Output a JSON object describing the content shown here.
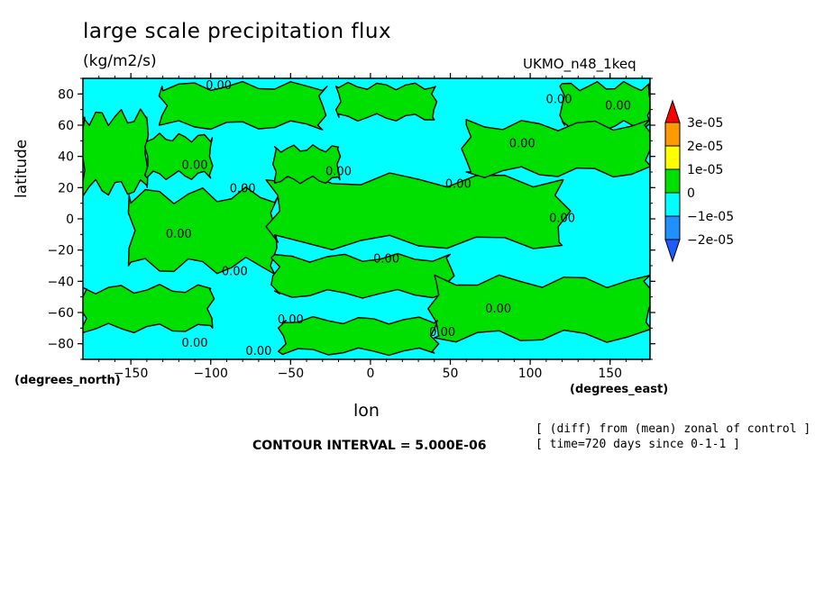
{
  "chart_data": {
    "type": "heatmap",
    "title": "large scale precipitation flux",
    "units": "(kg/m2/s)",
    "model_label": "UKMO_n48_1keq",
    "xlabel": "lon",
    "xunit": "(degrees_east)",
    "ylabel": "latitude",
    "yunit": "(degrees_north)",
    "xlim": [
      -180,
      175
    ],
    "ylim": [
      -90,
      90
    ],
    "x_ticks": [
      -150,
      -100,
      -50,
      0,
      50,
      100,
      150
    ],
    "y_ticks": [
      80,
      60,
      40,
      20,
      0,
      -20,
      -40,
      -60,
      -80
    ],
    "contour_labels": [
      "0.00"
    ],
    "colorbar": {
      "labels": [
        "3e-05",
        "2e-05",
        "1e-05",
        "0",
        "−1e-05",
        "−2e-05"
      ],
      "colors": [
        "#ff0000",
        "#ff9900",
        "#ffff00",
        "#00e000",
        "#00ffff",
        "#1e90ff",
        "#1f5cff"
      ]
    },
    "contour_interval": "CONTOUR INTERVAL = 5.000E-06",
    "notes": [
      "[ (diff) from (mean) zonal of control ]",
      "[ time=720 days since 0-1-1 ]"
    ],
    "regions_positive": [
      {
        "lon": [
          -180,
          -140
        ],
        "lat": [
          20,
          65
        ]
      },
      {
        "lon": [
          -140,
          -100
        ],
        "lat": [
          28,
          52
        ]
      },
      {
        "lon": [
          -150,
          -60
        ],
        "lat": [
          -30,
          15
        ]
      },
      {
        "lon": [
          -60,
          120
        ],
        "lat": [
          -15,
          25
        ]
      },
      {
        "lon": [
          -60,
          50
        ],
        "lat": [
          -48,
          -25
        ]
      },
      {
        "lon": [
          40,
          175
        ],
        "lat": [
          -75,
          -40
        ]
      },
      {
        "lon": [
          -180,
          -100
        ],
        "lat": [
          -70,
          -45
        ]
      },
      {
        "lon": [
          -55,
          40
        ],
        "lat": [
          -85,
          -65
        ]
      },
      {
        "lon": [
          -130,
          -30
        ],
        "lat": [
          60,
          85
        ]
      },
      {
        "lon": [
          -20,
          40
        ],
        "lat": [
          65,
          85
        ]
      },
      {
        "lon": [
          120,
          175
        ],
        "lat": [
          60,
          85
        ]
      },
      {
        "lon": [
          60,
          175
        ],
        "lat": [
          30,
          60
        ]
      },
      {
        "lon": [
          -60,
          -20
        ],
        "lat": [
          25,
          45
        ]
      }
    ]
  }
}
